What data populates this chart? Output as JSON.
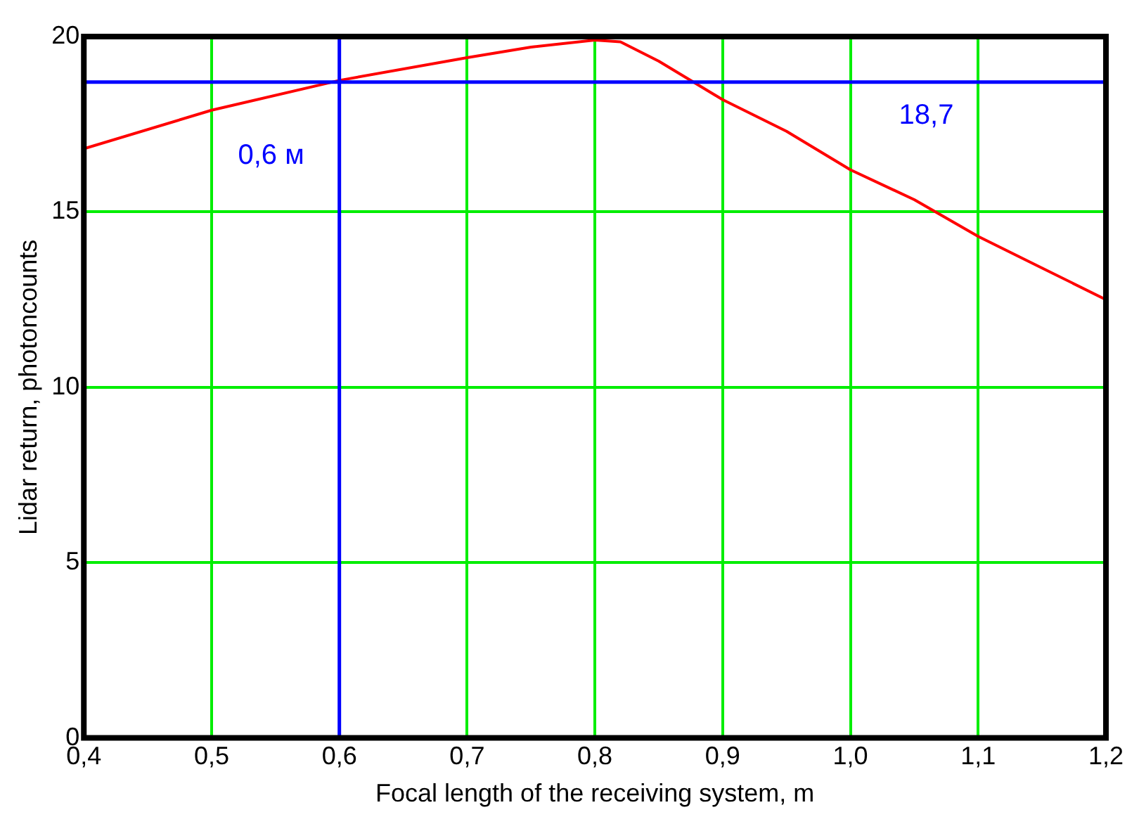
{
  "chart_data": {
    "type": "line",
    "xlabel": "Focal length of the receiving system, m",
    "ylabel": "Lidar return, photoncounts",
    "x": [
      0.4,
      0.5,
      0.6,
      0.7,
      0.75,
      0.8,
      0.82,
      0.85,
      0.9,
      0.95,
      1.0,
      1.05,
      1.1,
      1.15,
      1.2
    ],
    "series": [
      {
        "color": "#ff0000",
        "values": [
          16.8,
          17.9,
          18.75,
          19.4,
          19.7,
          19.9,
          19.85,
          19.3,
          18.2,
          17.3,
          16.2,
          15.35,
          14.3,
          13.4,
          12.5
        ]
      }
    ],
    "xlim": [
      0.4,
      1.2
    ],
    "ylim": [
      0,
      20
    ],
    "xticks": [
      {
        "value": 0.4,
        "label": "0,4"
      },
      {
        "value": 0.5,
        "label": "0,5"
      },
      {
        "value": 0.6,
        "label": "0,6"
      },
      {
        "value": 0.7,
        "label": "0,7"
      },
      {
        "value": 0.8,
        "label": "0,8"
      },
      {
        "value": 0.9,
        "label": "0,9"
      },
      {
        "value": 1.0,
        "label": "1,0"
      },
      {
        "value": 1.1,
        "label": "1,1"
      },
      {
        "value": 1.2,
        "label": "1,2"
      }
    ],
    "yticks": [
      0,
      5,
      10,
      15,
      20
    ],
    "grid": true,
    "legend": false,
    "marker": "none",
    "line_style": "solid",
    "ref_lines": [
      {
        "axis": "x",
        "value": 0.6,
        "label": "0,6 м",
        "color": "#0000ff"
      },
      {
        "axis": "y",
        "value": 18.7,
        "label": "18,7",
        "color": "#0000ff"
      }
    ]
  }
}
